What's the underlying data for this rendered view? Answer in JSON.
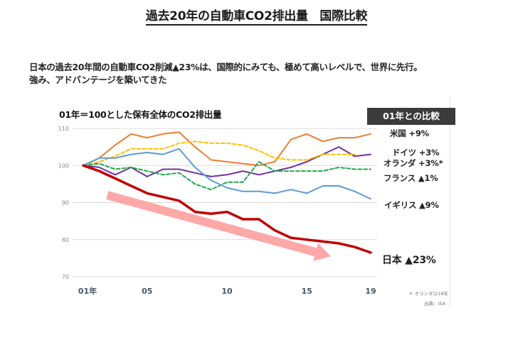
{
  "page": {
    "title": "過去20年の自動車CO2排出量　国際比較",
    "lead_line1": "日本の過去20年間の自動車CO2削減▲23%は、国際的にみても、極めて高いレベルで、世界に先行。",
    "lead_line2": "強み、アドバンテージを築いてきた"
  },
  "panel": {
    "compare_badge": "01年との比較",
    "footnote": "＊ オランダは18年",
    "source": "出典：IEA"
  },
  "chart_data": {
    "type": "line",
    "title": "01年＝100とした保有全体のCO2排出量",
    "xlabel": "",
    "ylabel": "",
    "x": [
      2001,
      2002,
      2003,
      2004,
      2005,
      2006,
      2007,
      2008,
      2009,
      2010,
      2011,
      2012,
      2013,
      2014,
      2015,
      2016,
      2017,
      2018,
      2019
    ],
    "x_ticks": [
      {
        "x": 2001,
        "label": "01年"
      },
      {
        "x": 2005,
        "label": "05"
      },
      {
        "x": 2010,
        "label": "10"
      },
      {
        "x": 2015,
        "label": "15"
      },
      {
        "x": 2019,
        "label": "19"
      }
    ],
    "y_ticks": [
      70,
      80,
      90,
      100,
      110
    ],
    "ylim": [
      70,
      110
    ],
    "grid": true,
    "legend": "right (direct labels)",
    "series": [
      {
        "name": "米国",
        "label": "米国 +9%",
        "color": "#ed7d31",
        "dashed": false,
        "width": 2,
        "values": [
          100,
          102,
          105.5,
          108.5,
          107.5,
          108.5,
          109,
          105,
          101.5,
          101,
          100.5,
          100,
          101,
          107,
          108.5,
          106.5,
          107.5,
          107.5,
          108.5
        ]
      },
      {
        "name": "ドイツ",
        "label": "ドイツ +3%",
        "color": "#7030a0",
        "dashed": false,
        "width": 2,
        "values": [
          100,
          99.5,
          97.5,
          99.5,
          97,
          99,
          99,
          98,
          97,
          97.5,
          98.5,
          97.5,
          98.5,
          99.5,
          101,
          103,
          105,
          102.5,
          103
        ]
      },
      {
        "name": "オランダ",
        "label": "オランダ +3%*",
        "color": "#ffc000",
        "dashed": true,
        "width": 2,
        "values": [
          100,
          101,
          102.5,
          104.5,
          104.5,
          104.5,
          106,
          106.5,
          106,
          106,
          105.5,
          104,
          102,
          101.5,
          101.5,
          103,
          103,
          103,
          null
        ]
      },
      {
        "name": "フランス",
        "label": "フランス ▲1%",
        "color": "#22a84a",
        "dashed": true,
        "width": 2,
        "values": [
          100,
          100.5,
          99,
          99.5,
          98.5,
          97.5,
          98,
          95,
          93.5,
          95.5,
          95.5,
          101,
          98.5,
          98.5,
          98.5,
          98.5,
          99.5,
          99,
          99
        ]
      },
      {
        "name": "イギリス",
        "label": "イギリス ▲9%",
        "color": "#5b9bd5",
        "dashed": false,
        "width": 2,
        "values": [
          100,
          102,
          102,
          103,
          103.5,
          103,
          104.5,
          99.5,
          96,
          94,
          93,
          93,
          92.5,
          93.5,
          92.5,
          94.5,
          94.5,
          93,
          91
        ]
      },
      {
        "name": "日本",
        "label": "日本 ▲23%",
        "color": "#c00000",
        "dashed": false,
        "width": 3.5,
        "values": [
          100,
          98.5,
          96.5,
          94.5,
          92.5,
          91.5,
          90.5,
          87.5,
          87,
          87.5,
          85.5,
          85.5,
          82.5,
          80.5,
          80,
          79.5,
          79,
          78,
          76.5
        ]
      }
    ],
    "annotations": [
      {
        "type": "arrow",
        "description": "downward trend arrow",
        "color": "#ff9999",
        "from": {
          "x": 2002.5,
          "y": 92
        },
        "to": {
          "x": 2016.5,
          "y": 75.5
        }
      }
    ]
  }
}
